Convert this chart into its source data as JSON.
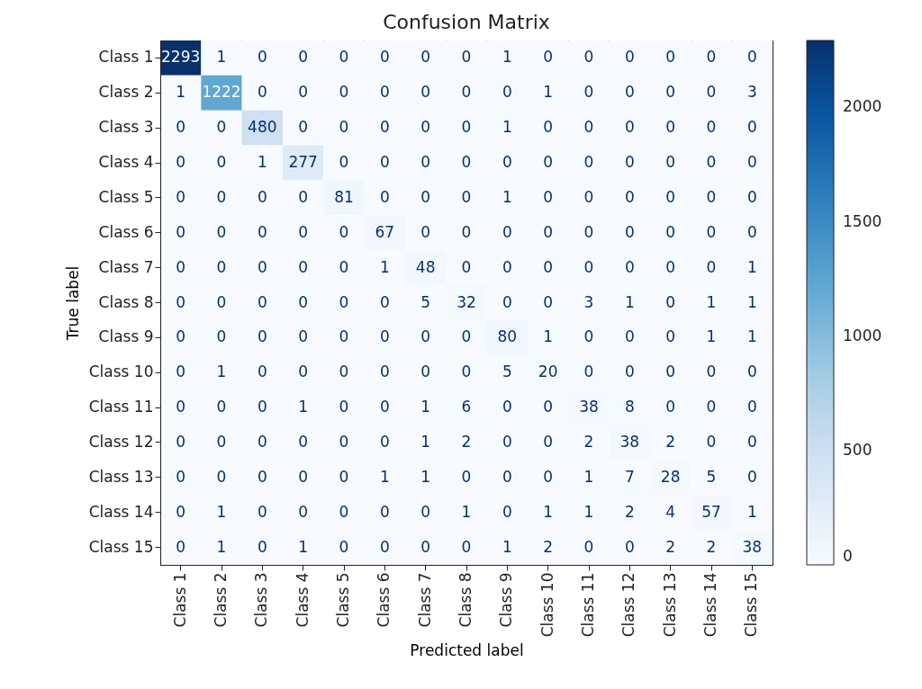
{
  "chart_data": {
    "type": "heatmap",
    "title": "Confusion Matrix",
    "xlabel": "Predicted label",
    "ylabel": "True label",
    "categories": [
      "Class 1",
      "Class 2",
      "Class 3",
      "Class 4",
      "Class 5",
      "Class 6",
      "Class 7",
      "Class 8",
      "Class 9",
      "Class 10",
      "Class 11",
      "Class 12",
      "Class 13",
      "Class 14",
      "Class 15"
    ],
    "y_categories": [
      "Class 1",
      "Class 2",
      "Class 3",
      "Class 4",
      "Class 5",
      "Class 6",
      "Class 7",
      "Class 8",
      "Class 9",
      "Class 10",
      "Class 11",
      "Class 12",
      "Class 13",
      "Class 14",
      "Class 15"
    ],
    "cells": [
      [
        2293,
        1,
        0,
        0,
        0,
        0,
        0,
        0,
        1,
        0,
        0,
        0,
        0,
        0,
        0
      ],
      [
        1,
        1222,
        0,
        0,
        0,
        0,
        0,
        0,
        0,
        1,
        0,
        0,
        0,
        0,
        3
      ],
      [
        0,
        0,
        480,
        0,
        0,
        0,
        0,
        0,
        1,
        0,
        0,
        0,
        0,
        0,
        0
      ],
      [
        0,
        0,
        1,
        277,
        0,
        0,
        0,
        0,
        0,
        0,
        0,
        0,
        0,
        0,
        0
      ],
      [
        0,
        0,
        0,
        0,
        81,
        0,
        0,
        0,
        1,
        0,
        0,
        0,
        0,
        0,
        0
      ],
      [
        0,
        0,
        0,
        0,
        0,
        67,
        0,
        0,
        0,
        0,
        0,
        0,
        0,
        0,
        0
      ],
      [
        0,
        0,
        0,
        0,
        0,
        1,
        48,
        0,
        0,
        0,
        0,
        0,
        0,
        0,
        1
      ],
      [
        0,
        0,
        0,
        0,
        0,
        0,
        5,
        32,
        0,
        0,
        3,
        1,
        0,
        1,
        1
      ],
      [
        0,
        0,
        0,
        0,
        0,
        0,
        0,
        0,
        80,
        1,
        0,
        0,
        0,
        1,
        1
      ],
      [
        0,
        1,
        0,
        0,
        0,
        0,
        0,
        0,
        5,
        20,
        0,
        0,
        0,
        0,
        0
      ],
      [
        0,
        0,
        0,
        1,
        0,
        0,
        1,
        6,
        0,
        0,
        38,
        8,
        0,
        0,
        0
      ],
      [
        0,
        0,
        0,
        0,
        0,
        0,
        1,
        2,
        0,
        0,
        2,
        38,
        2,
        0,
        0
      ],
      [
        0,
        0,
        0,
        0,
        0,
        1,
        1,
        0,
        0,
        0,
        1,
        7,
        28,
        5,
        0
      ],
      [
        0,
        1,
        0,
        0,
        0,
        0,
        0,
        1,
        0,
        1,
        1,
        2,
        4,
        57,
        1
      ],
      [
        0,
        1,
        0,
        1,
        0,
        0,
        0,
        0,
        1,
        2,
        0,
        0,
        2,
        2,
        38
      ]
    ],
    "clim": [
      0,
      2293
    ],
    "cticks": [
      0,
      500,
      1000,
      1500,
      2000
    ],
    "data_labels": true
  }
}
